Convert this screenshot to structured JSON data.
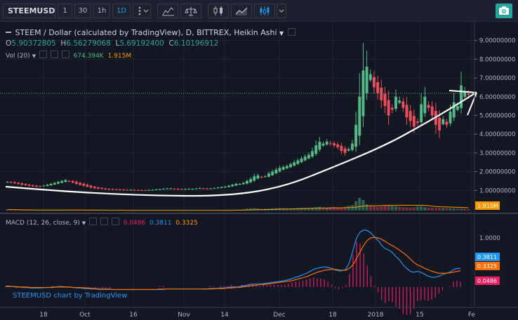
{
  "toolbar": {
    "symbol": "STEEMUSD",
    "intervals": [
      "1",
      "30",
      "1h",
      "1D"
    ],
    "active_interval": "1D",
    "icons": [
      "more-vert-icon",
      "compare-icon",
      "indicators-icon",
      "candles-icon",
      "line-icon",
      "heikin-ashi-icon",
      "chevron-down-icon",
      "camera-icon"
    ]
  },
  "legend": {
    "title": "STEEM / Dollar (calculated by TradingView), D, BITTREX, Heikin Ashi",
    "ohlc": [
      {
        "k": "O",
        "v": "5.90372805"
      },
      {
        "k": "H",
        "v": "6.56279068"
      },
      {
        "k": "L",
        "v": "5.69192400"
      },
      {
        "k": "C",
        "v": "6.10196912"
      }
    ],
    "vol_label": "Vol (20)",
    "vol_value": "674.394K",
    "vol_ma": "1.915M",
    "macd_label": "MACD (12, 26, close, 9)",
    "macd_hist": "0.0486",
    "macd_line": "0.3811",
    "macd_signal": "0.3325"
  },
  "credit": "STEEMUSD chart by TradingView",
  "colors": {
    "up": "#53b987",
    "down": "#eb4d5c",
    "macd": "#2196f3",
    "signal": "#ff6d00",
    "hist": "#e91e63",
    "annotation": "#ffffff"
  },
  "chart_data": {
    "type": "candlestick",
    "price_axis": [
      "9.00000000",
      "8.00000000",
      "7.00000000",
      "6.00000000",
      "5.00000000",
      "4.00000000",
      "3.00000000",
      "2.00000000",
      "1.00000000"
    ],
    "price_range": [
      0.0,
      9.4
    ],
    "current_price": "6.10196912",
    "volume_badge": "1.915M",
    "time_axis": [
      "18",
      "Oct",
      "16",
      "Nov",
      "14",
      "Dec",
      "18",
      "2018",
      "15",
      "Fe"
    ],
    "macd_axis": [
      "1.0000"
    ],
    "macd_range": [
      -0.3,
      1.3
    ],
    "macd_badges": [
      "0.3811",
      "0.3325",
      "0.0486"
    ],
    "price_close_path": [
      1.45,
      1.42,
      1.38,
      1.35,
      1.3,
      1.28,
      1.25,
      1.22,
      1.2,
      1.22,
      1.25,
      1.3,
      1.35,
      1.4,
      1.45,
      1.5,
      1.55,
      1.5,
      1.42,
      1.35,
      1.3,
      1.25,
      1.2,
      1.15,
      1.12,
      1.1,
      1.08,
      1.06,
      1.05,
      1.05,
      1.04,
      1.03,
      1.02,
      1.02,
      1.03,
      1.02,
      1.0,
      1.0,
      1.0,
      1.02,
      1.03,
      1.05,
      1.06,
      1.08,
      1.1,
      1.1,
      1.08,
      1.06,
      1.06,
      1.07,
      1.08,
      1.08,
      1.1,
      1.12,
      1.1,
      1.08,
      1.1,
      1.12,
      1.15,
      1.18,
      1.2,
      1.25,
      1.3,
      1.35,
      1.35,
      1.4,
      1.5,
      1.6,
      1.75,
      1.8,
      1.7,
      1.75,
      1.9,
      2.0,
      2.1,
      2.2,
      2.25,
      2.3,
      2.4,
      2.5,
      2.6,
      2.7,
      2.8,
      2.9,
      3.1,
      3.4,
      3.6,
      3.5,
      3.6,
      3.5,
      3.4,
      3.3,
      3.1,
      3.0,
      3.2,
      3.5,
      4.5,
      6.0,
      7.4,
      7.6,
      7.2,
      6.5,
      6.2,
      5.8,
      5.5,
      5.0,
      5.3,
      6.0,
      5.8,
      5.4,
      4.9,
      4.7,
      4.4,
      4.6,
      5.6,
      6.0,
      5.4,
      5.0,
      4.5,
      4.2,
      4.8,
      4.5,
      5.2,
      5.7,
      5.5,
      6.6,
      6.3,
      6.1
    ],
    "volume": [
      0.25,
      0.2,
      0.15,
      0.12,
      0.12,
      0.1,
      0.1,
      0.1,
      0.08,
      0.08,
      0.1,
      0.12,
      0.15,
      0.18,
      0.2,
      0.15,
      0.12,
      0.1,
      0.08,
      0.08,
      0.06,
      0.06,
      0.05,
      0.05,
      0.05,
      0.04,
      0.04,
      0.04,
      0.03,
      0.03,
      0.03,
      0.03,
      0.03,
      0.03,
      0.03,
      0.03,
      0.03,
      0.03,
      0.03,
      0.03,
      0.03,
      0.03,
      0.03,
      0.04,
      0.04,
      0.05,
      0.05,
      0.05,
      0.05,
      0.05,
      0.05,
      0.05,
      0.06,
      0.06,
      0.06,
      0.06,
      0.06,
      0.07,
      0.08,
      0.08,
      0.1,
      0.15,
      0.2,
      0.25,
      0.2,
      0.3,
      0.45,
      0.55,
      0.6,
      0.5,
      0.4,
      0.42,
      0.45,
      0.5,
      0.55,
      0.6,
      0.55,
      0.5,
      0.45,
      0.5,
      0.55,
      0.6,
      0.65,
      0.6,
      0.7,
      0.8,
      0.9,
      0.75,
      0.7,
      0.8,
      0.85,
      0.75,
      0.7,
      0.9,
      1.1,
      1.3,
      2.2,
      3.0,
      2.5,
      1.5,
      1.2,
      1.0,
      0.9,
      1.0,
      1.2,
      1.3,
      1.1,
      1.0,
      0.9,
      0.8,
      0.75,
      0.7,
      0.8,
      0.9,
      1.0,
      0.8,
      0.7,
      0.7,
      0.6,
      0.65,
      0.6,
      0.6,
      0.55,
      0.5,
      0.5,
      0.45,
      0.4,
      0.35
    ],
    "macd_path": [
      0.02,
      0.02,
      0.01,
      0.0,
      0.0,
      -0.01,
      -0.01,
      -0.02,
      -0.02,
      -0.02,
      -0.02,
      -0.01,
      -0.01,
      0.0,
      0.0,
      0.01,
      0.01,
      0.0,
      0.0,
      -0.01,
      -0.02,
      -0.02,
      -0.03,
      -0.03,
      -0.04,
      -0.04,
      -0.05,
      -0.05,
      -0.05,
      -0.05,
      -0.05,
      -0.05,
      -0.05,
      -0.05,
      -0.05,
      -0.05,
      -0.05,
      -0.05,
      -0.05,
      -0.05,
      -0.05,
      -0.05,
      -0.05,
      -0.04,
      -0.04,
      -0.04,
      -0.04,
      -0.04,
      -0.04,
      -0.04,
      -0.04,
      -0.04,
      -0.04,
      -0.04,
      -0.04,
      -0.04,
      -0.04,
      -0.03,
      -0.03,
      -0.03,
      -0.02,
      -0.02,
      -0.01,
      0.0,
      0.0,
      0.0,
      0.02,
      0.03,
      0.05,
      0.06,
      0.06,
      0.06,
      0.07,
      0.08,
      0.09,
      0.1,
      0.11,
      0.12,
      0.13,
      0.15,
      0.17,
      0.2,
      0.22,
      0.25,
      0.28,
      0.32,
      0.36,
      0.38,
      0.4,
      0.41,
      0.4,
      0.38,
      0.35,
      0.33,
      0.33,
      0.36,
      0.5,
      0.75,
      1.0,
      1.12,
      1.16,
      1.15,
      1.1,
      1.02,
      0.95,
      0.85,
      0.78,
      0.75,
      0.7,
      0.62,
      0.55,
      0.45,
      0.38,
      0.32,
      0.3,
      0.32,
      0.3,
      0.26,
      0.22,
      0.2,
      0.2,
      0.22,
      0.25,
      0.28,
      0.3,
      0.35,
      0.38,
      0.38
    ],
    "signal_path": [
      0.01,
      0.01,
      0.01,
      0.01,
      0.0,
      0.0,
      0.0,
      -0.01,
      -0.01,
      -0.01,
      -0.01,
      -0.01,
      -0.01,
      -0.01,
      0.0,
      0.0,
      0.0,
      0.0,
      0.0,
      -0.01,
      -0.01,
      -0.01,
      -0.02,
      -0.02,
      -0.03,
      -0.03,
      -0.04,
      -0.04,
      -0.04,
      -0.04,
      -0.05,
      -0.05,
      -0.05,
      -0.05,
      -0.05,
      -0.05,
      -0.05,
      -0.05,
      -0.05,
      -0.05,
      -0.05,
      -0.05,
      -0.05,
      -0.05,
      -0.05,
      -0.04,
      -0.04,
      -0.04,
      -0.04,
      -0.04,
      -0.04,
      -0.04,
      -0.04,
      -0.04,
      -0.04,
      -0.04,
      -0.04,
      -0.04,
      -0.04,
      -0.03,
      -0.03,
      -0.03,
      -0.02,
      -0.02,
      -0.01,
      -0.01,
      0.0,
      0.01,
      0.02,
      0.03,
      0.04,
      0.05,
      0.05,
      0.06,
      0.07,
      0.08,
      0.09,
      0.1,
      0.11,
      0.12,
      0.13,
      0.15,
      0.17,
      0.19,
      0.21,
      0.24,
      0.27,
      0.3,
      0.32,
      0.34,
      0.35,
      0.36,
      0.36,
      0.35,
      0.34,
      0.34,
      0.38,
      0.45,
      0.58,
      0.72,
      0.85,
      0.95,
      1.0,
      1.01,
      1.0,
      0.97,
      0.93,
      0.88,
      0.84,
      0.8,
      0.75,
      0.7,
      0.64,
      0.57,
      0.5,
      0.45,
      0.42,
      0.38,
      0.35,
      0.32,
      0.3,
      0.28,
      0.28,
      0.28,
      0.29,
      0.3,
      0.32,
      0.33
    ]
  }
}
